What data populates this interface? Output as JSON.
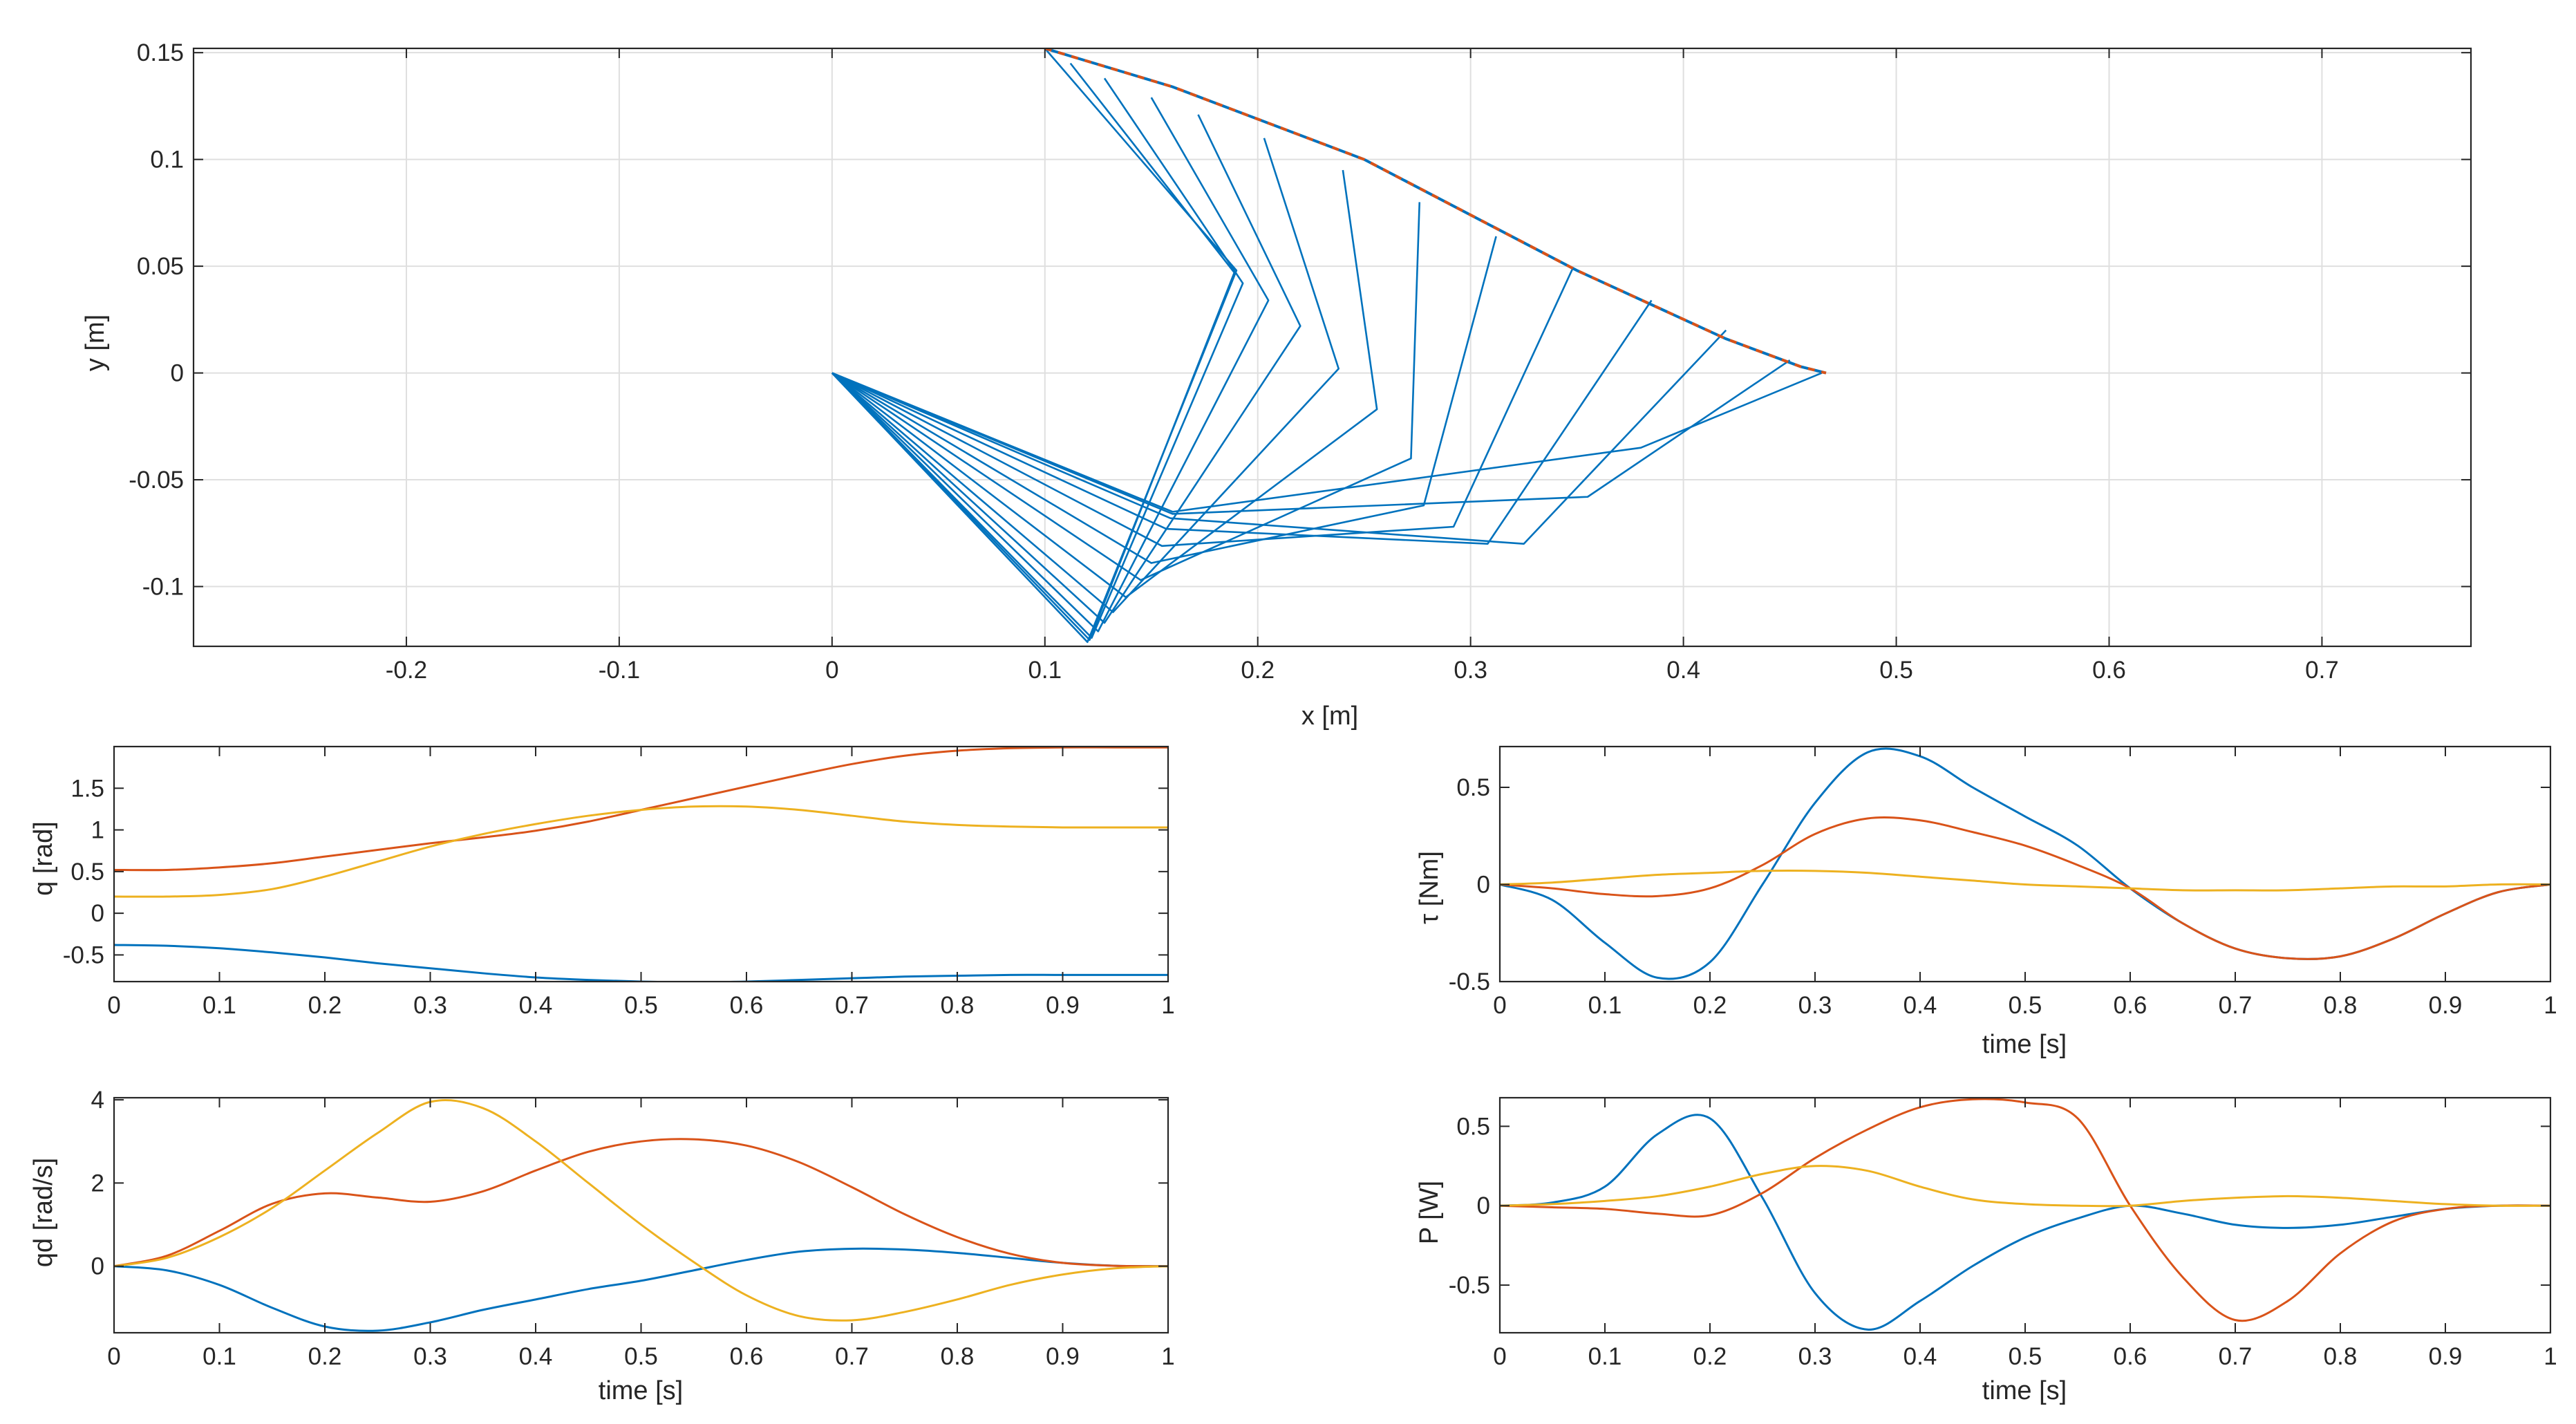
{
  "colors": {
    "blue": "#0072BD",
    "orange": "#D95319",
    "yellow": "#EDB120",
    "axis": "#262626",
    "grid": "#dfdfdf"
  },
  "chart_data": [
    {
      "id": "arm",
      "type": "line",
      "xlabel": "x [m]",
      "ylabel": "y [m]",
      "xlim": [
        -0.3,
        0.77
      ],
      "ylim": [
        -0.128,
        0.152
      ],
      "xticks": [
        -0.2,
        -0.1,
        0,
        0.1,
        0.2,
        0.3,
        0.4,
        0.5,
        0.6,
        0.7
      ],
      "xticklabels": [
        "-0.2",
        "-0.1",
        "0",
        "0.1",
        "0.2",
        "0.3",
        "0.4",
        "0.5",
        "0.6",
        "0.7"
      ],
      "yticks": [
        -0.1,
        -0.05,
        0,
        0.05,
        0.1,
        0.15
      ],
      "yticklabels": [
        "-0.1",
        "-0.05",
        "0",
        "0.05",
        "0.1",
        "0.15"
      ],
      "grid": true,
      "base": [
        0,
        0
      ],
      "arm_poses": [
        [
          [
            0.12,
            -0.126
          ],
          [
            0.19,
            0.048
          ],
          [
            0.1,
            0.152
          ]
        ],
        [
          [
            0.121,
            -0.125
          ],
          [
            0.189,
            0.047
          ],
          [
            0.112,
            0.145
          ]
        ],
        [
          [
            0.122,
            -0.124
          ],
          [
            0.193,
            0.042
          ],
          [
            0.128,
            0.138
          ]
        ],
        [
          [
            0.125,
            -0.121
          ],
          [
            0.205,
            0.034
          ],
          [
            0.15,
            0.129
          ]
        ],
        [
          [
            0.128,
            -0.117
          ],
          [
            0.22,
            0.022
          ],
          [
            0.172,
            0.121
          ]
        ],
        [
          [
            0.132,
            -0.112
          ],
          [
            0.238,
            0.002
          ],
          [
            0.203,
            0.11
          ]
        ],
        [
          [
            0.138,
            -0.105
          ],
          [
            0.256,
            -0.017
          ],
          [
            0.24,
            0.095
          ]
        ],
        [
          [
            0.145,
            -0.097
          ],
          [
            0.272,
            -0.04
          ],
          [
            0.276,
            0.08
          ]
        ],
        [
          [
            0.15,
            -0.089
          ],
          [
            0.278,
            -0.062
          ],
          [
            0.312,
            0.064
          ]
        ],
        [
          [
            0.155,
            -0.081
          ],
          [
            0.292,
            -0.072
          ],
          [
            0.348,
            0.049
          ]
        ],
        [
          [
            0.157,
            -0.073
          ],
          [
            0.308,
            -0.08
          ],
          [
            0.385,
            0.034
          ]
        ],
        [
          [
            0.159,
            -0.068
          ],
          [
            0.325,
            -0.08
          ],
          [
            0.42,
            0.02
          ]
        ],
        [
          [
            0.16,
            -0.066
          ],
          [
            0.355,
            -0.058
          ],
          [
            0.45,
            0.006
          ]
        ],
        [
          [
            0.16,
            -0.065
          ],
          [
            0.38,
            -0.035
          ],
          [
            0.465,
            0.0
          ]
        ]
      ],
      "path": [
        [
          0.1,
          0.152
        ],
        [
          0.16,
          0.134
        ],
        [
          0.25,
          0.1
        ],
        [
          0.35,
          0.048
        ],
        [
          0.42,
          0.016
        ],
        [
          0.455,
          0.003
        ],
        [
          0.467,
          0.0
        ]
      ]
    },
    {
      "id": "q",
      "type": "line",
      "xlabel": "",
      "ylabel": "q [rad]",
      "xlim": [
        0,
        1
      ],
      "ylim": [
        -0.82,
        2.0
      ],
      "xticks": [
        0,
        0.1,
        0.2,
        0.3,
        0.4,
        0.5,
        0.6,
        0.7,
        0.8,
        0.9,
        1
      ],
      "xticklabels": [
        "0",
        "0.1",
        "0.2",
        "0.3",
        "0.4",
        "0.5",
        "0.6",
        "0.7",
        "0.8",
        "0.9",
        "1"
      ],
      "yticks": [
        -0.5,
        0,
        0.5,
        1,
        1.5
      ],
      "yticklabels": [
        "-0.5",
        "0",
        "0.5",
        "1",
        "1.5"
      ],
      "x": [
        0,
        0.05,
        0.1,
        0.15,
        0.2,
        0.25,
        0.3,
        0.35,
        0.4,
        0.45,
        0.5,
        0.55,
        0.6,
        0.65,
        0.7,
        0.75,
        0.8,
        0.85,
        0.9,
        0.95,
        1
      ],
      "series": [
        {
          "color": "blue",
          "values": [
            -0.38,
            -0.39,
            -0.42,
            -0.47,
            -0.53,
            -0.6,
            -0.66,
            -0.72,
            -0.77,
            -0.8,
            -0.82,
            -0.83,
            -0.82,
            -0.8,
            -0.78,
            -0.76,
            -0.75,
            -0.74,
            -0.74,
            -0.74,
            -0.74
          ]
        },
        {
          "color": "orange",
          "values": [
            0.52,
            0.52,
            0.55,
            0.6,
            0.68,
            0.76,
            0.84,
            0.91,
            0.99,
            1.1,
            1.24,
            1.38,
            1.52,
            1.66,
            1.79,
            1.89,
            1.95,
            1.98,
            1.99,
            1.99,
            1.99
          ]
        },
        {
          "color": "yellow",
          "values": [
            0.2,
            0.2,
            0.22,
            0.29,
            0.44,
            0.62,
            0.8,
            0.95,
            1.07,
            1.17,
            1.24,
            1.28,
            1.28,
            1.24,
            1.17,
            1.1,
            1.06,
            1.04,
            1.03,
            1.03,
            1.03
          ]
        }
      ]
    },
    {
      "id": "qd",
      "type": "line",
      "xlabel": "time [s]",
      "ylabel": "qd [rad/s]",
      "xlim": [
        0,
        1
      ],
      "ylim": [
        -1.6,
        4.05
      ],
      "xticks": [
        0,
        0.1,
        0.2,
        0.3,
        0.4,
        0.5,
        0.6,
        0.7,
        0.8,
        0.9,
        1
      ],
      "xticklabels": [
        "0",
        "0.1",
        "0.2",
        "0.3",
        "0.4",
        "0.5",
        "0.6",
        "0.7",
        "0.8",
        "0.9",
        "1"
      ],
      "yticks": [
        0,
        2,
        4
      ],
      "yticklabels": [
        "0",
        "2",
        "4"
      ],
      "x": [
        0,
        0.05,
        0.1,
        0.15,
        0.2,
        0.25,
        0.3,
        0.35,
        0.4,
        0.45,
        0.5,
        0.55,
        0.6,
        0.65,
        0.7,
        0.75,
        0.8,
        0.85,
        0.9,
        0.95,
        1
      ],
      "series": [
        {
          "color": "blue",
          "values": [
            0,
            -0.1,
            -0.45,
            -1.0,
            -1.45,
            -1.55,
            -1.35,
            -1.05,
            -0.8,
            -0.55,
            -0.35,
            -0.1,
            0.15,
            0.35,
            0.42,
            0.4,
            0.32,
            0.2,
            0.08,
            0.01,
            0
          ]
        },
        {
          "color": "orange",
          "values": [
            0,
            0.25,
            0.85,
            1.5,
            1.75,
            1.65,
            1.55,
            1.8,
            2.3,
            2.75,
            3.0,
            3.05,
            2.9,
            2.5,
            1.9,
            1.25,
            0.7,
            0.3,
            0.08,
            0.01,
            0
          ]
        },
        {
          "color": "yellow",
          "values": [
            0,
            0.2,
            0.7,
            1.4,
            2.3,
            3.2,
            3.95,
            3.8,
            3.0,
            2.0,
            1.0,
            0.1,
            -0.7,
            -1.2,
            -1.3,
            -1.1,
            -0.8,
            -0.45,
            -0.2,
            -0.05,
            0
          ]
        }
      ]
    },
    {
      "id": "tau",
      "type": "line",
      "xlabel": "time [s]",
      "ylabel": "τ [Nm]",
      "xlim": [
        0,
        1
      ],
      "ylim": [
        -0.5,
        0.71
      ],
      "xticks": [
        0,
        0.1,
        0.2,
        0.3,
        0.4,
        0.5,
        0.6,
        0.7,
        0.8,
        0.9,
        1
      ],
      "xticklabels": [
        "0",
        "0.1",
        "0.2",
        "0.3",
        "0.4",
        "0.5",
        "0.6",
        "0.7",
        "0.8",
        "0.9",
        "1"
      ],
      "yticks": [
        -0.5,
        0,
        0.5
      ],
      "yticklabels": [
        "-0.5",
        "0",
        "0.5"
      ],
      "x": [
        0,
        0.05,
        0.1,
        0.15,
        0.2,
        0.25,
        0.3,
        0.35,
        0.4,
        0.45,
        0.5,
        0.55,
        0.6,
        0.65,
        0.7,
        0.75,
        0.8,
        0.85,
        0.9,
        0.95,
        1
      ],
      "series": [
        {
          "color": "blue",
          "values": [
            0,
            -0.08,
            -0.3,
            -0.48,
            -0.4,
            0.0,
            0.42,
            0.68,
            0.66,
            0.5,
            0.35,
            0.2,
            -0.02,
            -0.2,
            -0.33,
            -0.38,
            -0.37,
            -0.28,
            -0.15,
            -0.04,
            0
          ]
        },
        {
          "color": "orange",
          "values": [
            0,
            -0.02,
            -0.05,
            -0.06,
            -0.02,
            0.1,
            0.26,
            0.34,
            0.33,
            0.27,
            0.2,
            0.1,
            -0.02,
            -0.2,
            -0.33,
            -0.38,
            -0.37,
            -0.28,
            -0.15,
            -0.04,
            0
          ]
        },
        {
          "color": "yellow",
          "values": [
            0,
            0.01,
            0.03,
            0.05,
            0.06,
            0.07,
            0.07,
            0.06,
            0.04,
            0.02,
            0.0,
            -0.01,
            -0.02,
            -0.03,
            -0.03,
            -0.03,
            -0.02,
            -0.01,
            -0.01,
            0,
            0
          ]
        }
      ]
    },
    {
      "id": "P",
      "type": "line",
      "xlabel": "time [s]",
      "ylabel": "P [W]",
      "xlim": [
        0,
        1
      ],
      "ylim": [
        -0.8,
        0.68
      ],
      "xticks": [
        0,
        0.1,
        0.2,
        0.3,
        0.4,
        0.5,
        0.6,
        0.7,
        0.8,
        0.9,
        1
      ],
      "xticklabels": [
        "0",
        "0.1",
        "0.2",
        "0.3",
        "0.4",
        "0.5",
        "0.6",
        "0.7",
        "0.8",
        "0.9",
        "1"
      ],
      "yticks": [
        -0.5,
        0,
        0.5
      ],
      "yticklabels": [
        "-0.5",
        "0",
        "0.5"
      ],
      "x": [
        0,
        0.05,
        0.1,
        0.15,
        0.2,
        0.25,
        0.3,
        0.35,
        0.4,
        0.45,
        0.5,
        0.55,
        0.6,
        0.65,
        0.7,
        0.75,
        0.8,
        0.85,
        0.9,
        0.95,
        1
      ],
      "series": [
        {
          "color": "blue",
          "values": [
            0,
            0.02,
            0.12,
            0.45,
            0.55,
            0.05,
            -0.55,
            -0.78,
            -0.6,
            -0.38,
            -0.2,
            -0.08,
            0.0,
            -0.05,
            -0.12,
            -0.14,
            -0.12,
            -0.07,
            -0.02,
            0,
            0
          ]
        },
        {
          "color": "orange",
          "values": [
            0,
            -0.01,
            -0.02,
            -0.05,
            -0.06,
            0.08,
            0.3,
            0.48,
            0.62,
            0.67,
            0.65,
            0.55,
            0.0,
            -0.45,
            -0.72,
            -0.6,
            -0.3,
            -0.1,
            -0.02,
            0,
            0
          ]
        },
        {
          "color": "yellow",
          "values": [
            0,
            0.01,
            0.03,
            0.06,
            0.12,
            0.2,
            0.25,
            0.22,
            0.12,
            0.04,
            0.01,
            0.0,
            0.0,
            0.03,
            0.05,
            0.06,
            0.05,
            0.03,
            0.01,
            0,
            0
          ]
        }
      ]
    }
  ]
}
